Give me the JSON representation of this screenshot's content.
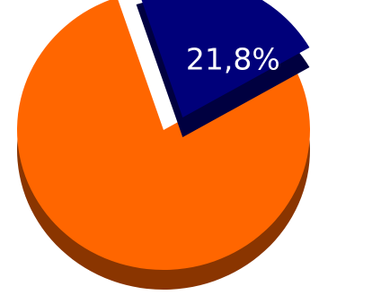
{
  "chart_data": {
    "type": "pie",
    "style": "3d-exploded",
    "values": [
      78.2,
      21.8
    ],
    "labels": [
      "",
      "21,8%"
    ],
    "colors": [
      "#ff6600",
      "#00007a"
    ],
    "side_colors": [
      "#8a3500",
      "#000040"
    ],
    "exploded": [
      false,
      true
    ]
  }
}
